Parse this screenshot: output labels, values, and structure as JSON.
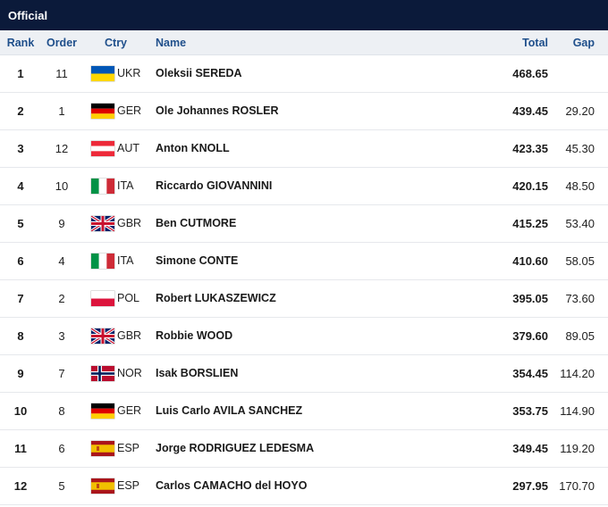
{
  "panel": {
    "title": "Official"
  },
  "columns": {
    "rank": "Rank",
    "order": "Order",
    "ctry": "Ctry",
    "name": "Name",
    "total": "Total",
    "gap": "Gap"
  },
  "rows": [
    {
      "rank": "1",
      "order": "11",
      "ctry": "UKR",
      "flag": "ukraine-flag-icon",
      "name": "Oleksii SEREDA",
      "total": "468.65",
      "gap": ""
    },
    {
      "rank": "2",
      "order": "1",
      "ctry": "GER",
      "flag": "germany-flag-icon",
      "name": "Ole Johannes ROSLER",
      "total": "439.45",
      "gap": "29.20"
    },
    {
      "rank": "3",
      "order": "12",
      "ctry": "AUT",
      "flag": "austria-flag-icon",
      "name": "Anton KNOLL",
      "total": "423.35",
      "gap": "45.30"
    },
    {
      "rank": "4",
      "order": "10",
      "ctry": "ITA",
      "flag": "italy-flag-icon",
      "name": "Riccardo GIOVANNINI",
      "total": "420.15",
      "gap": "48.50"
    },
    {
      "rank": "5",
      "order": "9",
      "ctry": "GBR",
      "flag": "uk-flag-icon",
      "name": "Ben CUTMORE",
      "total": "415.25",
      "gap": "53.40"
    },
    {
      "rank": "6",
      "order": "4",
      "ctry": "ITA",
      "flag": "italy-flag-icon",
      "name": "Simone CONTE",
      "total": "410.60",
      "gap": "58.05"
    },
    {
      "rank": "7",
      "order": "2",
      "ctry": "POL",
      "flag": "poland-flag-icon",
      "name": "Robert LUKASZEWICZ",
      "total": "395.05",
      "gap": "73.60"
    },
    {
      "rank": "8",
      "order": "3",
      "ctry": "GBR",
      "flag": "uk-flag-icon",
      "name": "Robbie WOOD",
      "total": "379.60",
      "gap": "89.05"
    },
    {
      "rank": "9",
      "order": "7",
      "ctry": "NOR",
      "flag": "norway-flag-icon",
      "name": "Isak BORSLIEN",
      "total": "354.45",
      "gap": "114.20"
    },
    {
      "rank": "10",
      "order": "8",
      "ctry": "GER",
      "flag": "germany-flag-icon",
      "name": "Luis Carlo AVILA SANCHEZ",
      "total": "353.75",
      "gap": "114.90"
    },
    {
      "rank": "11",
      "order": "6",
      "ctry": "ESP",
      "flag": "spain-flag-icon",
      "name": "Jorge RODRIGUEZ LEDESMA",
      "total": "349.45",
      "gap": "119.20"
    },
    {
      "rank": "12",
      "order": "5",
      "ctry": "ESP",
      "flag": "spain-flag-icon",
      "name": "Carlos CAMACHO del HOYO",
      "total": "297.95",
      "gap": "170.70"
    }
  ],
  "colors": {
    "title_bg": "#0b1a3a",
    "header_bg": "#edf0f4",
    "header_text": "#1f4f8b"
  }
}
